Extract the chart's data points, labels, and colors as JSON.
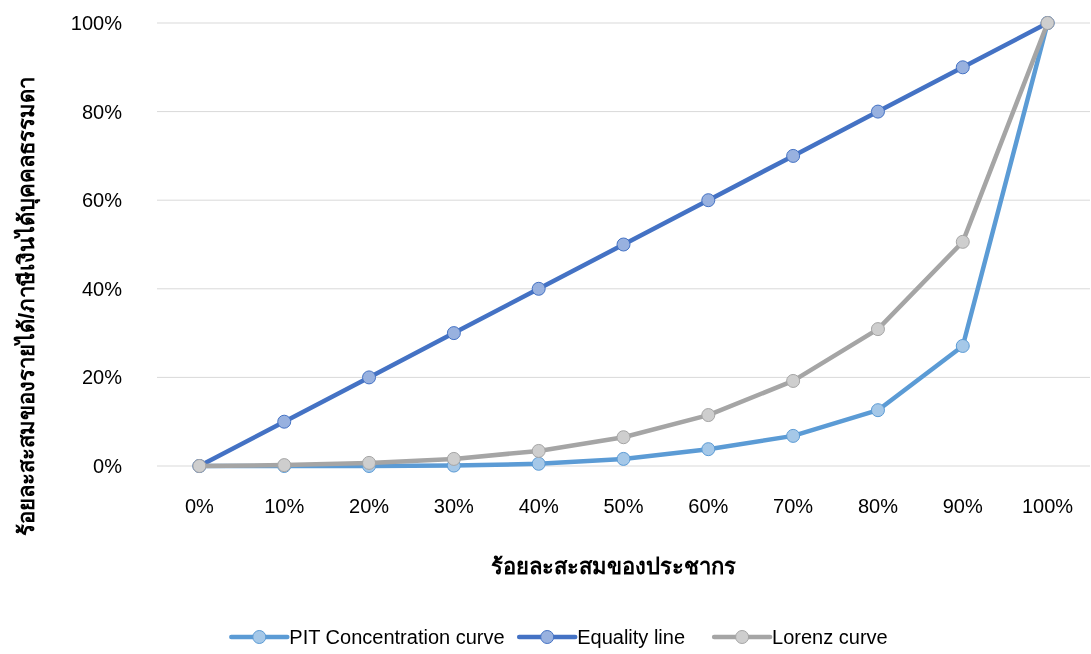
{
  "chart_data": {
    "type": "line",
    "xlabel": "ร้อยละสะสมของประชากร",
    "ylabel": "ร้อยละสะสมของรายได้/ภาษีเงินได้บุคคลธรรมดา",
    "categories": [
      "0%",
      "10%",
      "20%",
      "30%",
      "40%",
      "50%",
      "60%",
      "70%",
      "80%",
      "90%",
      "100%"
    ],
    "series": [
      {
        "name": "PIT Concentration curve",
        "color": "#5b9bd5",
        "values": [
          0,
          0,
          0,
          0.1,
          0.5,
          1.6,
          3.8,
          6.8,
          12.6,
          27.1,
          100
        ]
      },
      {
        "name": "Equality line",
        "color": "#4472c4",
        "values": [
          0,
          10,
          20,
          30,
          40,
          50,
          60,
          70,
          80,
          90,
          100
        ]
      },
      {
        "name": "Lorenz curve",
        "color": "#a5a5a5",
        "values": [
          0,
          0.2,
          0.7,
          1.6,
          3.4,
          6.5,
          11.5,
          19.2,
          30.9,
          50.6,
          100
        ]
      }
    ],
    "ylim": [
      0,
      100
    ],
    "yticks": [
      {
        "value": 0,
        "label": "0%"
      },
      {
        "value": 20,
        "label": "20%"
      },
      {
        "value": 40,
        "label": "40%"
      },
      {
        "value": 60,
        "label": "60%"
      },
      {
        "value": 80,
        "label": "80%"
      },
      {
        "value": 100,
        "label": "100%"
      }
    ],
    "grid": "y",
    "legend": "bottom",
    "marker": "circle",
    "line_style": "solid"
  }
}
